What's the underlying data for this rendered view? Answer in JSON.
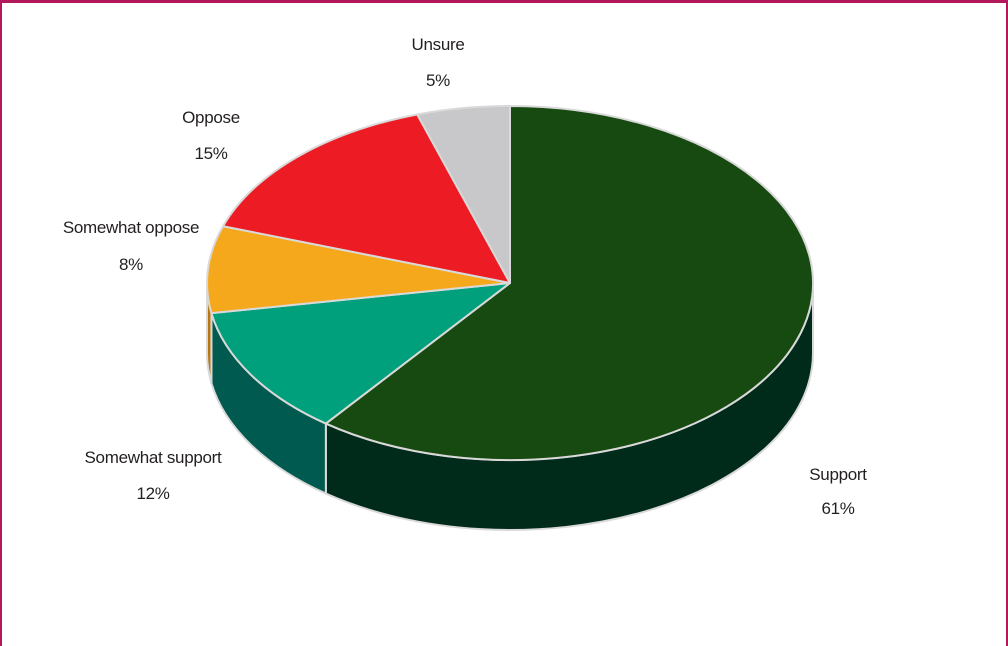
{
  "chart_data": {
    "type": "pie",
    "style": "3d",
    "title": "",
    "slices": [
      {
        "label": "Support",
        "value": 61,
        "value_label": "61%",
        "color": "#174a10",
        "side_color": "#002a1a"
      },
      {
        "label": "Somewhat support",
        "value": 12,
        "value_label": "12%",
        "color": "#00a07c",
        "side_color": "#005a4f"
      },
      {
        "label": "Somewhat oppose",
        "value": 8,
        "value_label": "8%",
        "color": "#f6a81d",
        "side_color": "#b77612"
      },
      {
        "label": "Oppose",
        "value": 15,
        "value_label": "15%",
        "color": "#ed1c24",
        "side_color": "#a01218"
      },
      {
        "label": "Unsure",
        "value": 5,
        "value_label": "5%",
        "color": "#c8c8ca",
        "side_color": "#8c8c8e"
      }
    ],
    "legend": "none",
    "border_color": "#b3195a"
  }
}
